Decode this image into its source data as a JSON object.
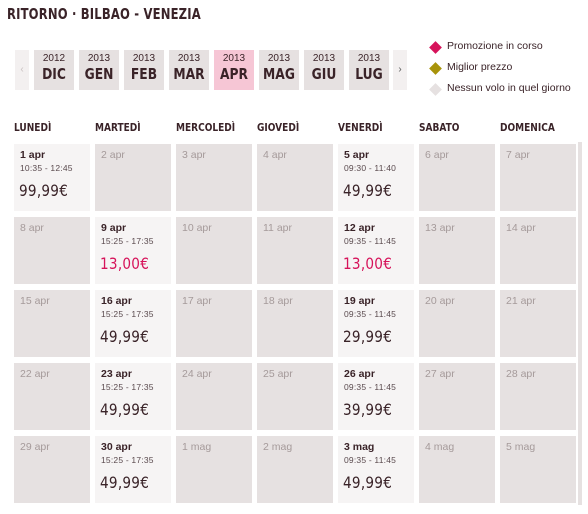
{
  "header": {
    "title": "RITORNO · BILBAO - VENEZIA"
  },
  "month_nav": {
    "prev_label": "‹",
    "next_label": "›",
    "months": [
      {
        "year": "2012",
        "month": "DIC",
        "active": false
      },
      {
        "year": "2013",
        "month": "GEN",
        "active": false
      },
      {
        "year": "2013",
        "month": "FEB",
        "active": false
      },
      {
        "year": "2013",
        "month": "MAR",
        "active": false
      },
      {
        "year": "2013",
        "month": "APR",
        "active": true
      },
      {
        "year": "2013",
        "month": "MAG",
        "active": false
      },
      {
        "year": "2013",
        "month": "GIU",
        "active": false
      },
      {
        "year": "2013",
        "month": "LUG",
        "active": false
      }
    ]
  },
  "legend": [
    {
      "label": "Promozione in corso",
      "color": "#d6135a",
      "icon": "diamond-icon"
    },
    {
      "label": "Miglior prezzo",
      "color": "#a8930a",
      "icon": "diamond-icon"
    },
    {
      "label": "Nessun volo in quel giorno",
      "color": "#e6e1e1",
      "icon": "diamond-icon"
    }
  ],
  "weekdays": [
    "LUNEDÌ",
    "MARTEDÌ",
    "MERCOLEDÌ",
    "GIOVEDÌ",
    "VENERDÌ",
    "SABATO",
    "DOMENICA"
  ],
  "calendar": [
    [
      {
        "date": "1 apr",
        "time": "10:35 - 12:45",
        "price": "99,99€",
        "avail": true
      },
      {
        "date": "2 apr",
        "avail": false
      },
      {
        "date": "3 apr",
        "avail": false
      },
      {
        "date": "4 apr",
        "avail": false
      },
      {
        "date": "5 apr",
        "time": "09:30 - 11:40",
        "price": "49,99€",
        "avail": true
      },
      {
        "date": "6 apr",
        "avail": false
      },
      {
        "date": "7 apr",
        "avail": false
      }
    ],
    [
      {
        "date": "8 apr",
        "avail": false
      },
      {
        "date": "9 apr",
        "time": "15:25 - 17:35",
        "price": "13,00€",
        "avail": true,
        "promo": true
      },
      {
        "date": "10 apr",
        "avail": false
      },
      {
        "date": "11 apr",
        "avail": false
      },
      {
        "date": "12 apr",
        "time": "09:35 - 11:45",
        "price": "13,00€",
        "avail": true,
        "promo": true
      },
      {
        "date": "13 apr",
        "avail": false
      },
      {
        "date": "14 apr",
        "avail": false
      }
    ],
    [
      {
        "date": "15 apr",
        "avail": false
      },
      {
        "date": "16 apr",
        "time": "15:25 - 17:35",
        "price": "49,99€",
        "avail": true
      },
      {
        "date": "17 apr",
        "avail": false
      },
      {
        "date": "18 apr",
        "avail": false
      },
      {
        "date": "19 apr",
        "time": "09:35 - 11:45",
        "price": "29,99€",
        "avail": true
      },
      {
        "date": "20 apr",
        "avail": false
      },
      {
        "date": "21 apr",
        "avail": false
      }
    ],
    [
      {
        "date": "22 apr",
        "avail": false
      },
      {
        "date": "23 apr",
        "time": "15:25 - 17:35",
        "price": "49,99€",
        "avail": true
      },
      {
        "date": "24 apr",
        "avail": false
      },
      {
        "date": "25 apr",
        "avail": false
      },
      {
        "date": "26 apr",
        "time": "09:35 - 11:45",
        "price": "39,99€",
        "avail": true
      },
      {
        "date": "27 apr",
        "avail": false
      },
      {
        "date": "28 apr",
        "avail": false
      }
    ],
    [
      {
        "date": "29 apr",
        "avail": false
      },
      {
        "date": "30 apr",
        "time": "15:25 - 17:35",
        "price": "49,99€",
        "avail": true
      },
      {
        "date": "1 mag",
        "avail": false
      },
      {
        "date": "2 mag",
        "avail": false
      },
      {
        "date": "3 mag",
        "time": "09:35 - 11:45",
        "price": "49,99€",
        "avail": true
      },
      {
        "date": "4 mag",
        "avail": false
      },
      {
        "date": "5 mag",
        "avail": false
      }
    ]
  ]
}
